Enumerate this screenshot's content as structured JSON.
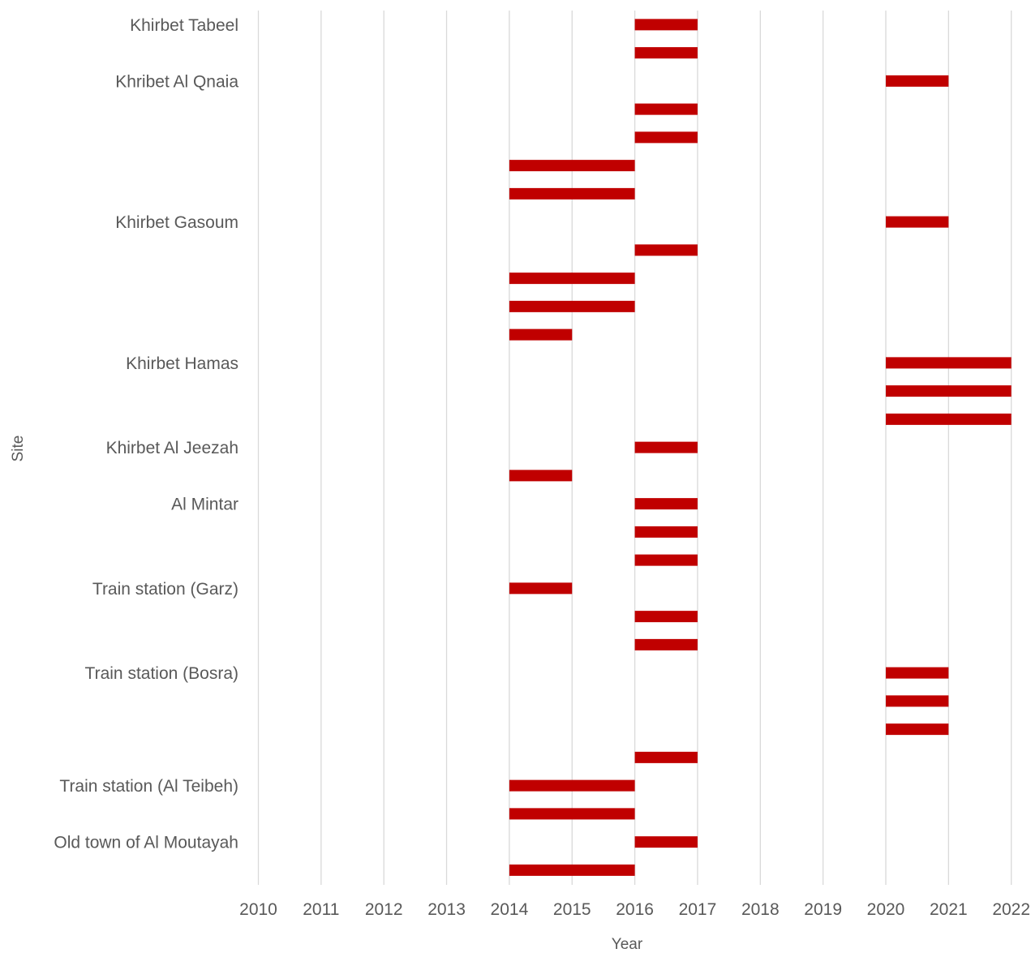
{
  "chart_data": {
    "type": "bar",
    "orientation": "horizontal",
    "subtype": "floating",
    "xlabel": "Year",
    "ylabel": "Site",
    "xlim": [
      2010,
      2022
    ],
    "x_ticks": [
      "2010",
      "2011",
      "2012",
      "2013",
      "2014",
      "2015",
      "2016",
      "2017",
      "2018",
      "2019",
      "2020",
      "2021",
      "2022"
    ],
    "grid": "vertical",
    "legend": "none",
    "bar_color": "#c00000",
    "rows": [
      {
        "label": "Khirbet Tabeel",
        "start": 2016,
        "end": 2017
      },
      {
        "label": "",
        "start": 2016,
        "end": 2017
      },
      {
        "label": "Khribet Al Qnaia",
        "start": 2020,
        "end": 2021
      },
      {
        "label": "",
        "start": 2016,
        "end": 2017
      },
      {
        "label": "",
        "start": 2016,
        "end": 2017
      },
      {
        "label": "",
        "start": 2014,
        "end": 2016
      },
      {
        "label": "",
        "start": 2014,
        "end": 2016
      },
      {
        "label": "Khirbet Gasoum",
        "start": 2020,
        "end": 2021
      },
      {
        "label": "",
        "start": 2016,
        "end": 2017
      },
      {
        "label": "",
        "start": 2014,
        "end": 2016
      },
      {
        "label": "",
        "start": 2014,
        "end": 2016
      },
      {
        "label": "",
        "start": 2014,
        "end": 2015
      },
      {
        "label": "Khirbet Hamas",
        "start": 2020,
        "end": 2022
      },
      {
        "label": "",
        "start": 2020,
        "end": 2022
      },
      {
        "label": "",
        "start": 2020,
        "end": 2022
      },
      {
        "label": "Khirbet Al Jeezah",
        "start": 2016,
        "end": 2017
      },
      {
        "label": "",
        "start": 2014,
        "end": 2015
      },
      {
        "label": "Al Mintar",
        "start": 2016,
        "end": 2017
      },
      {
        "label": "",
        "start": 2016,
        "end": 2017
      },
      {
        "label": "",
        "start": 2016,
        "end": 2017
      },
      {
        "label": "Train station (Garz)",
        "start": 2014,
        "end": 2015
      },
      {
        "label": "",
        "start": 2016,
        "end": 2017
      },
      {
        "label": "",
        "start": 2016,
        "end": 2017
      },
      {
        "label": "Train station (Bosra)",
        "start": 2020,
        "end": 2021
      },
      {
        "label": "",
        "start": 2020,
        "end": 2021
      },
      {
        "label": "",
        "start": 2020,
        "end": 2021
      },
      {
        "label": "",
        "start": 2016,
        "end": 2017
      },
      {
        "label": "Train station (Al Teibeh)",
        "start": 2014,
        "end": 2016
      },
      {
        "label": "",
        "start": 2014,
        "end": 2016
      },
      {
        "label": "Old town of Al Moutayah",
        "start": 2016,
        "end": 2017
      },
      {
        "label": "",
        "start": 2014,
        "end": 2016
      }
    ]
  }
}
